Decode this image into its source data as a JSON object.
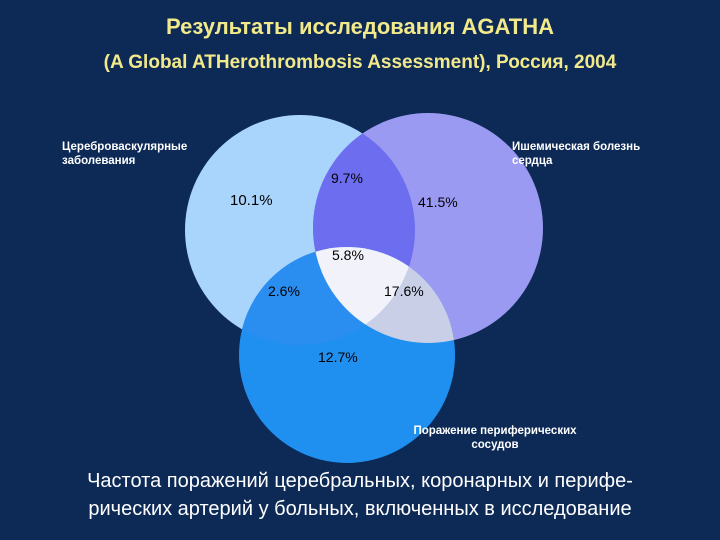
{
  "title": "Результаты исследования AGATHA",
  "subtitle": "(A Global ATHerothrombosis Assessment), Россия, 2004",
  "venn": {
    "circle_labels": {
      "cerebro_line1": "Цереброваскулярные",
      "cerebro_line2": "заболевания",
      "cardiac_line1": "Ишемическая болезнь",
      "cardiac_line2": "сердца",
      "peripheral_line1": "Поражение периферических",
      "peripheral_line2": "сосудов"
    },
    "regions": {
      "cerebro_only": "10.1%",
      "cerebro_cardiac": "9.7%",
      "cardiac_only": "41.5%",
      "all_three": "5.8%",
      "cerebro_peripheral": "2.6%",
      "cardiac_peripheral": "17.6%",
      "peripheral_only": "12.7%"
    },
    "colors": {
      "background": "#0d2a57",
      "cerebro": "#a9d4fb",
      "cardiac": "#9b9af2",
      "peripheral": "#1f8ff0",
      "cerebro_cardiac": "#6d6df0",
      "all_three": "#f2f2fb",
      "cardiac_peripheral": "#c8cfe6",
      "title": "#f2e98a"
    }
  },
  "caption": {
    "line1": "Частота поражений церебральных, коронарных и перифе-",
    "line2": "рических артерий у больных, включенных в исследование"
  }
}
